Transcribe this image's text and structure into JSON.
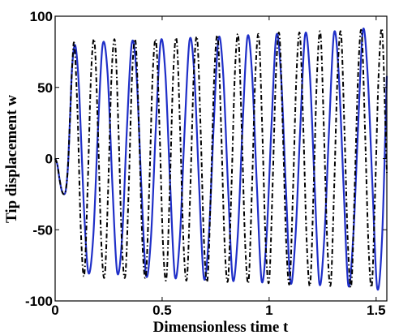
{
  "chart_data": {
    "type": "line",
    "title": "",
    "xlabel": "Dimensionless time t",
    "ylabel": "Tip displacement w",
    "xlim": [
      0,
      1.55
    ],
    "ylim": [
      -100,
      100
    ],
    "x_ticks": [
      0,
      0.5,
      1,
      1.5
    ],
    "x_tick_labels": [
      "0",
      "0.5",
      "1",
      "1.5"
    ],
    "y_ticks": [
      -100,
      -50,
      0,
      50,
      100
    ],
    "y_tick_labels": [
      "-100",
      "-50",
      "0",
      "50",
      "100"
    ],
    "grid": false,
    "legend": "none",
    "series": [
      {
        "style": "solid",
        "color": "#1f2fc8",
        "points": [
          [
            0,
            0
          ],
          [
            0.01,
            -4
          ],
          [
            0.02,
            -14
          ],
          [
            0.03,
            -22
          ],
          [
            0.04,
            -25
          ],
          [
            0.05,
            -22
          ],
          [
            0.06,
            -5
          ],
          [
            0.07,
            30
          ],
          [
            0.08,
            66
          ],
          [
            0.095,
            79
          ],
          [
            0.113,
            45
          ],
          [
            0.133,
            -30
          ],
          [
            0.155,
            -80
          ],
          [
            0.178,
            -55
          ],
          [
            0.2,
            20
          ],
          [
            0.222,
            80
          ],
          [
            0.245,
            60
          ],
          [
            0.268,
            -20
          ],
          [
            0.29,
            -80
          ],
          [
            0.313,
            -55
          ],
          [
            0.335,
            20
          ],
          [
            0.358,
            81
          ],
          [
            0.38,
            60
          ],
          [
            0.403,
            -20
          ],
          [
            0.425,
            -82
          ],
          [
            0.448,
            -55
          ],
          [
            0.47,
            20
          ],
          [
            0.493,
            82
          ],
          [
            0.515,
            60
          ],
          [
            0.538,
            -20
          ],
          [
            0.56,
            -83
          ],
          [
            0.583,
            -55
          ],
          [
            0.605,
            20
          ],
          [
            0.628,
            83
          ],
          [
            0.65,
            60
          ],
          [
            0.673,
            -20
          ],
          [
            0.695,
            -84
          ],
          [
            0.718,
            -55
          ],
          [
            0.74,
            20
          ],
          [
            0.763,
            84
          ],
          [
            0.785,
            60
          ],
          [
            0.808,
            -20
          ],
          [
            0.83,
            -85
          ],
          [
            0.853,
            -55
          ],
          [
            0.875,
            20
          ],
          [
            0.898,
            85
          ],
          [
            0.92,
            60
          ],
          [
            0.943,
            -20
          ],
          [
            0.965,
            -86
          ],
          [
            0.988,
            -55
          ],
          [
            1.01,
            20
          ],
          [
            1.033,
            86
          ],
          [
            1.055,
            60
          ],
          [
            1.078,
            -20
          ],
          [
            1.1,
            -87
          ],
          [
            1.123,
            -55
          ],
          [
            1.145,
            20
          ],
          [
            1.168,
            87
          ],
          [
            1.19,
            60
          ],
          [
            1.213,
            -20
          ],
          [
            1.235,
            -88
          ],
          [
            1.258,
            -55
          ],
          [
            1.28,
            20
          ],
          [
            1.303,
            88
          ],
          [
            1.325,
            60
          ],
          [
            1.348,
            -20
          ],
          [
            1.37,
            -89
          ],
          [
            1.393,
            -55
          ],
          [
            1.415,
            20
          ],
          [
            1.438,
            90
          ],
          [
            1.46,
            60
          ],
          [
            1.483,
            -20
          ],
          [
            1.505,
            -91
          ],
          [
            1.528,
            -55
          ],
          [
            1.55,
            58
          ]
        ]
      },
      {
        "style": "dash-dot",
        "color": "#000000",
        "points": [
          [
            0,
            0
          ],
          [
            0.01,
            -4
          ],
          [
            0.02,
            -14
          ],
          [
            0.03,
            -22
          ],
          [
            0.04,
            -25
          ],
          [
            0.05,
            -22
          ],
          [
            0.06,
            -5
          ],
          [
            0.07,
            30
          ],
          [
            0.08,
            66
          ],
          [
            0.09,
            80
          ],
          [
            0.105,
            30
          ],
          [
            0.12,
            -50
          ],
          [
            0.136,
            -82
          ],
          [
            0.152,
            -20
          ],
          [
            0.168,
            60
          ],
          [
            0.184,
            82
          ],
          [
            0.2,
            20
          ],
          [
            0.216,
            -60
          ],
          [
            0.232,
            -82
          ],
          [
            0.248,
            -20
          ],
          [
            0.264,
            60
          ],
          [
            0.28,
            82
          ],
          [
            0.296,
            20
          ],
          [
            0.312,
            -60
          ],
          [
            0.328,
            -82
          ],
          [
            0.344,
            -20
          ],
          [
            0.36,
            60
          ],
          [
            0.376,
            82
          ],
          [
            0.392,
            20
          ],
          [
            0.408,
            -60
          ],
          [
            0.424,
            -82
          ],
          [
            0.44,
            -20
          ],
          [
            0.456,
            60
          ],
          [
            0.472,
            82
          ],
          [
            0.488,
            20
          ],
          [
            0.504,
            -60
          ],
          [
            0.52,
            -84
          ],
          [
            0.536,
            -20
          ],
          [
            0.552,
            60
          ],
          [
            0.568,
            83
          ],
          [
            0.584,
            20
          ],
          [
            0.6,
            -60
          ],
          [
            0.616,
            -84
          ],
          [
            0.632,
            -20
          ],
          [
            0.648,
            60
          ],
          [
            0.664,
            84
          ],
          [
            0.68,
            20
          ],
          [
            0.696,
            -60
          ],
          [
            0.712,
            -85
          ],
          [
            0.728,
            -20
          ],
          [
            0.744,
            60
          ],
          [
            0.76,
            85
          ],
          [
            0.776,
            20
          ],
          [
            0.792,
            -60
          ],
          [
            0.808,
            -85
          ],
          [
            0.824,
            -20
          ],
          [
            0.84,
            60
          ],
          [
            0.856,
            86
          ],
          [
            0.872,
            20
          ],
          [
            0.888,
            -60
          ],
          [
            0.904,
            -86
          ],
          [
            0.92,
            -20
          ],
          [
            0.936,
            60
          ],
          [
            0.952,
            86
          ],
          [
            0.968,
            20
          ],
          [
            0.984,
            -60
          ],
          [
            1.0,
            -86
          ],
          [
            1.016,
            -20
          ],
          [
            1.032,
            60
          ],
          [
            1.048,
            87
          ],
          [
            1.064,
            20
          ],
          [
            1.08,
            -60
          ],
          [
            1.096,
            -87
          ],
          [
            1.112,
            -20
          ],
          [
            1.128,
            60
          ],
          [
            1.144,
            87
          ],
          [
            1.16,
            20
          ],
          [
            1.176,
            -60
          ],
          [
            1.192,
            -88
          ],
          [
            1.208,
            -20
          ],
          [
            1.224,
            60
          ],
          [
            1.24,
            88
          ],
          [
            1.256,
            20
          ],
          [
            1.272,
            -60
          ],
          [
            1.288,
            -88
          ],
          [
            1.304,
            -20
          ],
          [
            1.32,
            60
          ],
          [
            1.336,
            88
          ],
          [
            1.352,
            20
          ],
          [
            1.368,
            -60
          ],
          [
            1.384,
            -89
          ],
          [
            1.4,
            -20
          ],
          [
            1.416,
            60
          ],
          [
            1.432,
            89
          ],
          [
            1.448,
            20
          ],
          [
            1.464,
            -60
          ],
          [
            1.48,
            -89
          ],
          [
            1.496,
            -20
          ],
          [
            1.512,
            60
          ],
          [
            1.528,
            90
          ],
          [
            1.544,
            20
          ],
          [
            1.55,
            -10
          ]
        ]
      }
    ]
  }
}
